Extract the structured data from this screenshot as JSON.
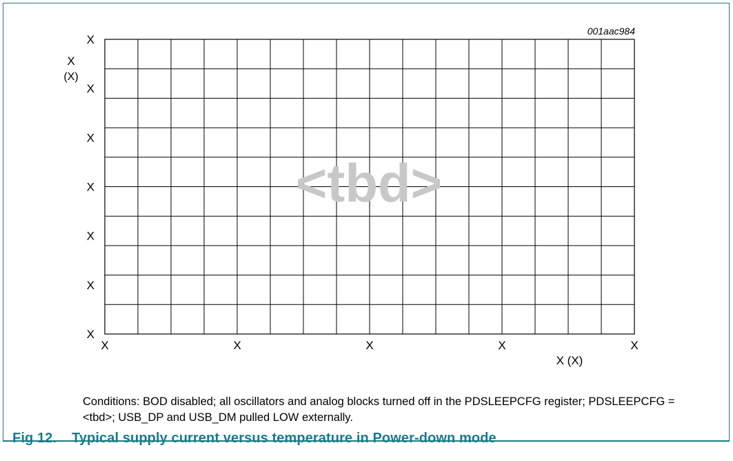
{
  "chart_data": {
    "type": "line",
    "figure_id": "001aac984",
    "title": "",
    "watermark": "<tbd>",
    "ylabel_line1": "X",
    "ylabel_line2": "(X)",
    "xlabel": "X (X)",
    "y_tick_labels": [
      "X",
      "X",
      "X",
      "X",
      "X",
      "X",
      "X"
    ],
    "x_tick_labels": [
      "X",
      "X",
      "X",
      "X",
      "X"
    ],
    "grid": true,
    "grid_columns": 16,
    "grid_rows": 10,
    "series": []
  },
  "conditions_text": "Conditions: BOD disabled; all oscillators and analog blocks turned off in the PDSLEEPCFG register; PDSLEEPCFG = <tbd>; USB_DP and USB_DM pulled LOW externally.",
  "caption": {
    "number": "Fig 12.",
    "text": "Typical supply current versus temperature in Power-down mode"
  },
  "colors": {
    "frame": "#1a7a8a",
    "caption": "#1a7a8a",
    "watermark": "#c8c8c8",
    "grid": "#000000"
  }
}
